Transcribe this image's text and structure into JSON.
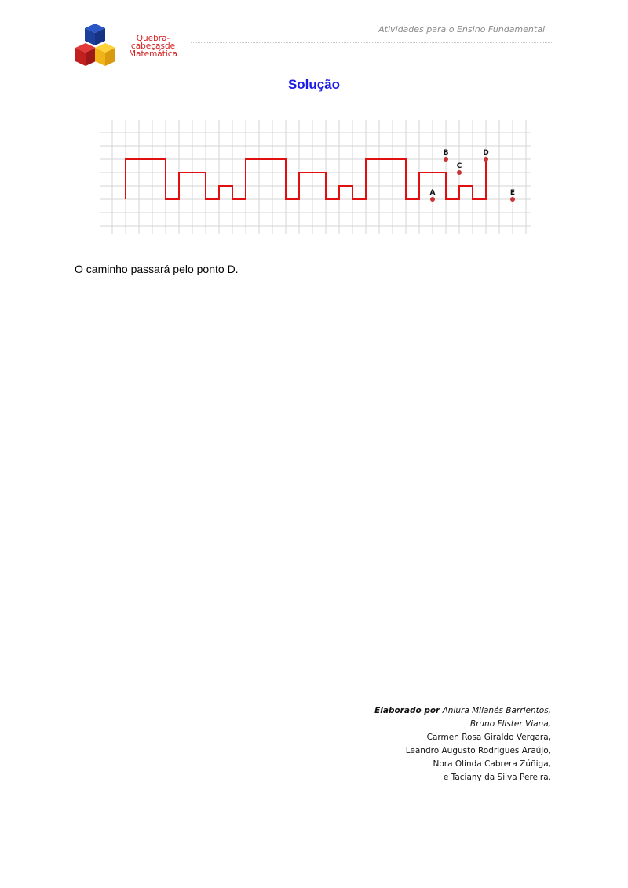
{
  "header": {
    "subtitle": "Atividades para o Ensino Fundamental",
    "logo_text_line1": "Quebra-cabeças",
    "logo_text_line2": "de Matemática"
  },
  "title": "Solução",
  "figure": {
    "points": [
      {
        "label": "A"
      },
      {
        "label": "B"
      },
      {
        "label": "C"
      },
      {
        "label": "D"
      },
      {
        "label": "E"
      }
    ],
    "path_color": "#e01010",
    "point_color": "#c83232"
  },
  "answer_text": "O caminho passará pelo ponto D.",
  "credits": {
    "lead": "Elaborado por",
    "first_name": "Aniura Milanés Barrientos,",
    "names": [
      "Bruno Flister Viana,",
      "Carmen Rosa Giraldo Vergara,",
      "Leandro Augusto Rodrigues Araújo,",
      "Nora Olinda Cabrera Zúñiga,",
      "e Taciany da Silva Pereira."
    ]
  }
}
